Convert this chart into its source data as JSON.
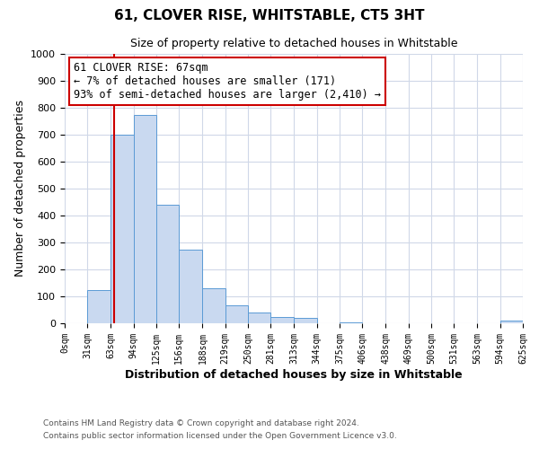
{
  "title": "61, CLOVER RISE, WHITSTABLE, CT5 3HT",
  "subtitle": "Size of property relative to detached houses in Whitstable",
  "xlabel": "Distribution of detached houses by size in Whitstable",
  "ylabel": "Number of detached properties",
  "footer_line1": "Contains HM Land Registry data © Crown copyright and database right 2024.",
  "footer_line2": "Contains public sector information licensed under the Open Government Licence v3.0.",
  "bin_edges": [
    0,
    31,
    63,
    94,
    125,
    156,
    188,
    219,
    250,
    281,
    313,
    344,
    375,
    406,
    438,
    469,
    500,
    531,
    563,
    594,
    625
  ],
  "bar_heights": [
    0,
    125,
    700,
    775,
    440,
    275,
    130,
    68,
    40,
    25,
    20,
    0,
    5,
    0,
    0,
    0,
    0,
    0,
    0,
    10
  ],
  "bar_color": "#c9d9f0",
  "bar_edge_color": "#5b9bd5",
  "property_line_x": 67,
  "property_line_color": "#cc0000",
  "annotation_line1": "61 CLOVER RISE: 67sqm",
  "annotation_line2": "← 7% of detached houses are smaller (171)",
  "annotation_line3": "93% of semi-detached houses are larger (2,410) →",
  "annotation_box_color": "#cc0000",
  "annotation_bg": "white",
  "ylim": [
    0,
    1000
  ],
  "tick_labels": [
    "0sqm",
    "31sqm",
    "63sqm",
    "94sqm",
    "125sqm",
    "156sqm",
    "188sqm",
    "219sqm",
    "250sqm",
    "281sqm",
    "313sqm",
    "344sqm",
    "375sqm",
    "406sqm",
    "438sqm",
    "469sqm",
    "500sqm",
    "531sqm",
    "563sqm",
    "594sqm",
    "625sqm"
  ],
  "background_color": "#ffffff",
  "grid_color": "#d0d8e8"
}
